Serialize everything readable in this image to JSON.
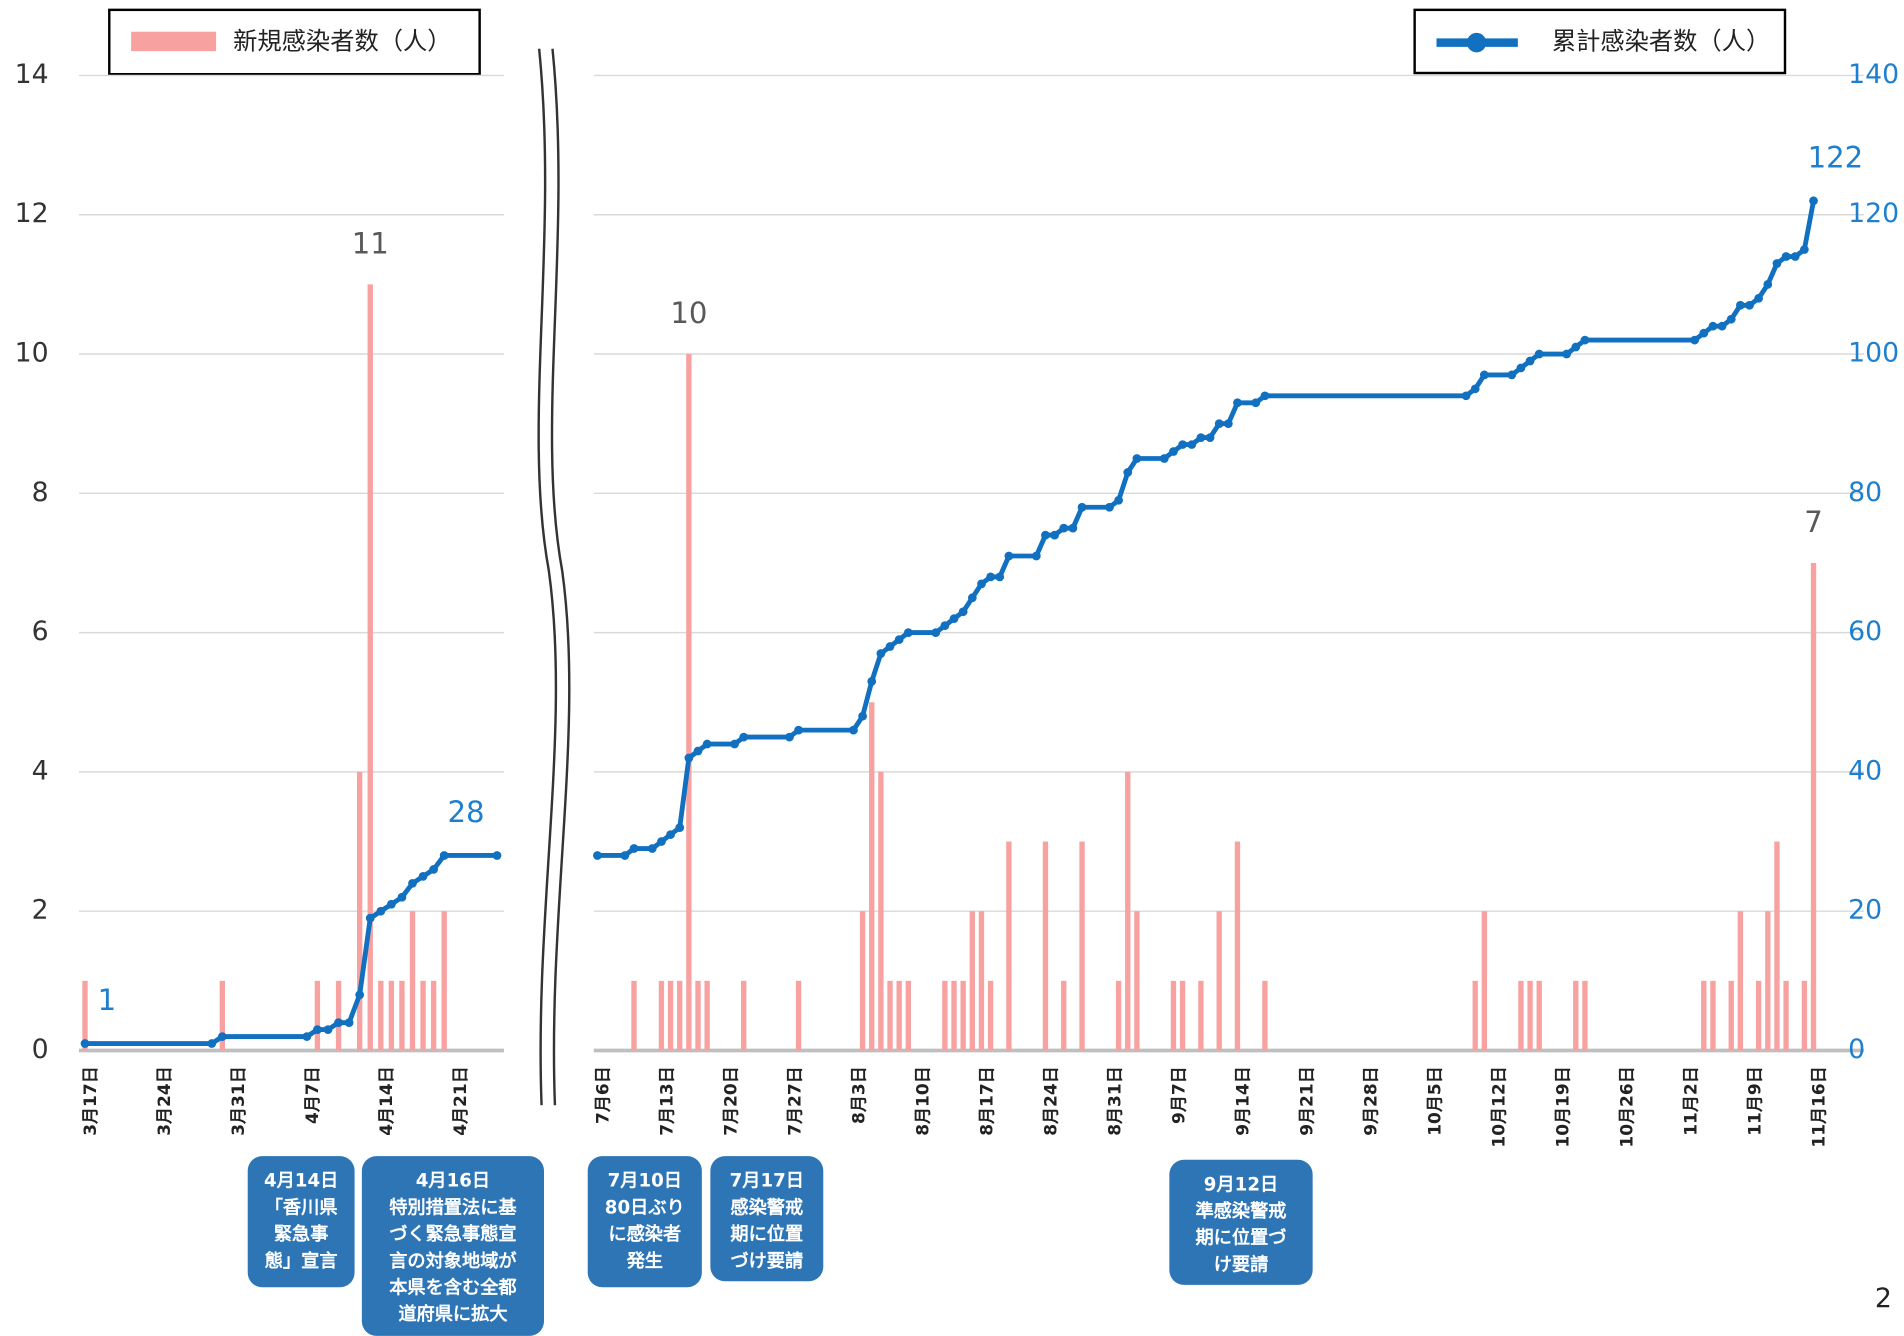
{
  "chart_data": {
    "type": "bar-line",
    "series": [
      {
        "name": "新規感染者数（人）",
        "color": "#f7a1a1"
      },
      {
        "name": "累計感染者数（人）",
        "color": "#1170c0",
        "axis": "y2"
      }
    ],
    "ylim": [
      0,
      14
    ],
    "yticks": [
      0,
      2,
      4,
      6,
      8,
      10,
      12,
      14
    ],
    "y2lim": [
      0,
      140
    ],
    "y2ticks": [
      0,
      20,
      40,
      60,
      80,
      100,
      120,
      140
    ],
    "grid": true,
    "panels": [
      {
        "categories": [
          "3月17日",
          null,
          null,
          null,
          null,
          null,
          null,
          "3月24日",
          null,
          null,
          null,
          null,
          null,
          null,
          "3月31日",
          null,
          null,
          null,
          null,
          null,
          null,
          "4月7日",
          null,
          null,
          null,
          null,
          null,
          null,
          "4月14日",
          null,
          null,
          null,
          null,
          null,
          null,
          "4月21日",
          null,
          null,
          null,
          null
        ],
        "series": [
          {
            "values": [
              1,
              0,
              0,
              0,
              0,
              0,
              0,
              0,
              0,
              0,
              0,
              0,
              0,
              1,
              0,
              0,
              0,
              0,
              0,
              0,
              0,
              0,
              1,
              0,
              1,
              0,
              4,
              11,
              1,
              1,
              1,
              2,
              1,
              1,
              2,
              0,
              0,
              0,
              0,
              0
            ],
            "value_labels": [
              null,
              null,
              null,
              null,
              null,
              null,
              null,
              null,
              null,
              null,
              null,
              null,
              null,
              null,
              null,
              null,
              null,
              null,
              null,
              null,
              null,
              null,
              null,
              null,
              null,
              null,
              null,
              "11",
              null,
              null,
              null,
              null,
              null,
              null,
              null,
              null,
              null,
              null,
              null,
              null
            ]
          },
          {
            "values": [
              1,
              1,
              1,
              1,
              1,
              1,
              1,
              1,
              1,
              1,
              1,
              1,
              1,
              2,
              2,
              2,
              2,
              2,
              2,
              2,
              2,
              2,
              3,
              3,
              4,
              4,
              8,
              19,
              20,
              21,
              22,
              24,
              25,
              26,
              28,
              28,
              28,
              28,
              28,
              28
            ],
            "value_labels": [
              "1",
              null,
              null,
              null,
              null,
              null,
              null,
              null,
              null,
              null,
              null,
              null,
              null,
              null,
              null,
              null,
              null,
              null,
              null,
              null,
              null,
              null,
              null,
              null,
              null,
              null,
              null,
              null,
              null,
              null,
              null,
              null,
              null,
              null,
              "28",
              null,
              null,
              null,
              null,
              null
            ]
          }
        ]
      },
      {
        "categories": [
          "7月6日",
          null,
          null,
          null,
          null,
          null,
          null,
          "7月13日",
          null,
          null,
          null,
          null,
          null,
          null,
          "7月20日",
          null,
          null,
          null,
          null,
          null,
          null,
          "7月27日",
          null,
          null,
          null,
          null,
          null,
          null,
          "8月3日",
          null,
          null,
          null,
          null,
          null,
          null,
          "8月10日",
          null,
          null,
          null,
          null,
          null,
          null,
          "8月17日",
          null,
          null,
          null,
          null,
          null,
          null,
          "8月24日",
          null,
          null,
          null,
          null,
          null,
          null,
          "8月31日",
          null,
          null,
          null,
          null,
          null,
          null,
          "9月7日",
          null,
          null,
          null,
          null,
          null,
          null,
          "9月14日",
          null,
          null,
          null,
          null,
          null,
          null,
          "9月21日",
          null,
          null,
          null,
          null,
          null,
          null,
          "9月28日",
          null,
          null,
          null,
          null,
          null,
          null,
          "10月5日",
          null,
          null,
          null,
          null,
          null,
          null,
          "10月12日",
          null,
          null,
          null,
          null,
          null,
          null,
          "10月19日",
          null,
          null,
          null,
          null,
          null,
          null,
          "10月26日",
          null,
          null,
          null,
          null,
          null,
          null,
          "11月2日",
          null,
          null,
          null,
          null,
          null,
          null,
          "11月9日",
          null,
          null,
          null,
          null,
          null,
          null,
          "11月16日"
        ],
        "series": [
          {
            "values": [
              0,
              0,
              0,
              0,
              1,
              0,
              0,
              1,
              1,
              1,
              10,
              1,
              1,
              0,
              0,
              0,
              1,
              0,
              0,
              0,
              0,
              0,
              1,
              0,
              0,
              0,
              0,
              0,
              0,
              2,
              5,
              4,
              1,
              1,
              1,
              0,
              0,
              0,
              1,
              1,
              1,
              2,
              2,
              1,
              0,
              3,
              0,
              0,
              0,
              3,
              0,
              1,
              0,
              3,
              0,
              0,
              0,
              1,
              4,
              2,
              0,
              0,
              0,
              1,
              1,
              0,
              1,
              0,
              2,
              0,
              3,
              0,
              0,
              1,
              0,
              0,
              0,
              0,
              0,
              0,
              0,
              0,
              0,
              0,
              0,
              0,
              0,
              0,
              0,
              0,
              0,
              0,
              0,
              0,
              0,
              0,
              1,
              2,
              0,
              0,
              0,
              1,
              1,
              1,
              0,
              0,
              0,
              1,
              1,
              0,
              0,
              0,
              0,
              0,
              0,
              0,
              0,
              0,
              0,
              0,
              0,
              1,
              1,
              0,
              1,
              2,
              0,
              1,
              2,
              3,
              1,
              0,
              1,
              7
            ],
            "value_labels": [
              null,
              null,
              null,
              null,
              null,
              null,
              null,
              null,
              null,
              null,
              "10",
              null,
              null,
              null,
              null,
              null,
              null,
              null,
              null,
              null,
              null,
              null,
              null,
              null,
              null,
              null,
              null,
              null,
              null,
              null,
              null,
              null,
              null,
              null,
              null,
              null,
              null,
              null,
              null,
              null,
              null,
              null,
              null,
              null,
              null,
              null,
              null,
              null,
              null,
              null,
              null,
              null,
              null,
              null,
              null,
              null,
              null,
              null,
              null,
              null,
              null,
              null,
              null,
              null,
              null,
              null,
              null,
              null,
              null,
              null,
              null,
              null,
              null,
              null,
              null,
              null,
              null,
              null,
              null,
              null,
              null,
              null,
              null,
              null,
              null,
              null,
              null,
              null,
              null,
              null,
              null,
              null,
              null,
              null,
              null,
              null,
              null,
              null,
              null,
              null,
              null,
              null,
              null,
              null,
              null,
              null,
              null,
              null,
              null,
              null,
              null,
              null,
              null,
              null,
              null,
              null,
              null,
              null,
              null,
              null,
              null,
              null,
              null,
              null,
              null,
              null,
              null,
              null,
              null,
              null,
              null,
              null,
              null,
              "7"
            ]
          },
          {
            "values": [
              28,
              28,
              28,
              28,
              29,
              29,
              29,
              30,
              31,
              32,
              42,
              43,
              44,
              44,
              44,
              44,
              45,
              45,
              45,
              45,
              45,
              45,
              46,
              46,
              46,
              46,
              46,
              46,
              46,
              48,
              53,
              57,
              58,
              59,
              60,
              60,
              60,
              60,
              61,
              62,
              63,
              65,
              67,
              68,
              68,
              71,
              71,
              71,
              71,
              74,
              74,
              75,
              75,
              78,
              78,
              78,
              78,
              79,
              83,
              85,
              85,
              85,
              85,
              86,
              87,
              87,
              88,
              88,
              90,
              90,
              93,
              93,
              93,
              94,
              94,
              94,
              94,
              94,
              94,
              94,
              94,
              94,
              94,
              94,
              94,
              94,
              94,
              94,
              94,
              94,
              94,
              94,
              94,
              94,
              94,
              94,
              95,
              97,
              97,
              97,
              97,
              98,
              99,
              100,
              100,
              100,
              100,
              101,
              102,
              102,
              102,
              102,
              102,
              102,
              102,
              102,
              102,
              102,
              102,
              102,
              102,
              103,
              104,
              104,
              105,
              107,
              107,
              108,
              110,
              113,
              114,
              114,
              115,
              122
            ],
            "value_labels": [
              null,
              null,
              null,
              null,
              null,
              null,
              null,
              null,
              null,
              null,
              null,
              null,
              null,
              null,
              null,
              null,
              null,
              null,
              null,
              null,
              null,
              null,
              null,
              null,
              null,
              null,
              null,
              null,
              null,
              null,
              null,
              null,
              null,
              null,
              null,
              null,
              null,
              null,
              null,
              null,
              null,
              null,
              null,
              null,
              null,
              null,
              null,
              null,
              null,
              null,
              null,
              null,
              null,
              null,
              null,
              null,
              null,
              null,
              null,
              null,
              null,
              null,
              null,
              null,
              null,
              null,
              null,
              null,
              null,
              null,
              null,
              null,
              null,
              null,
              null,
              null,
              null,
              null,
              null,
              null,
              null,
              null,
              null,
              null,
              null,
              null,
              null,
              null,
              null,
              null,
              null,
              null,
              null,
              null,
              null,
              null,
              null,
              null,
              null,
              null,
              null,
              null,
              null,
              null,
              null,
              null,
              null,
              null,
              null,
              null,
              null,
              null,
              null,
              null,
              null,
              null,
              null,
              null,
              null,
              null,
              null,
              null,
              null,
              null,
              null,
              null,
              null,
              null,
              null,
              null,
              null,
              null,
              null,
              "122"
            ]
          }
        ]
      }
    ],
    "annotations": [
      {
        "lines": [
          "4月14日",
          "「香川県",
          "緊急事",
          "態」宣言"
        ]
      },
      {
        "lines": [
          "4月16日",
          "特別措置法に基",
          "づく緊急事態宣",
          "言の対象地域が",
          "本県を含む全都",
          "道府県に拡大"
        ]
      },
      {
        "lines": [
          "7月10日",
          "80日ぶり",
          "に感染者",
          "発生"
        ]
      },
      {
        "lines": [
          "7月17日",
          "感染警戒",
          "期に位置",
          "づけ要請"
        ]
      },
      {
        "lines": [
          "9月12日",
          "準感染警戒",
          "期に位置づ",
          "け要請"
        ]
      }
    ]
  },
  "page_number": "2"
}
